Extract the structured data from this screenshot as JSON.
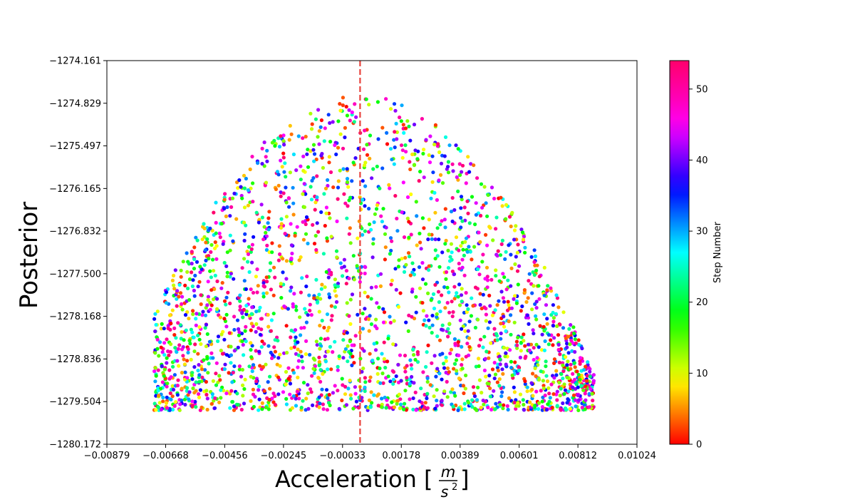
{
  "chart_data": {
    "type": "scatter",
    "title": "",
    "xlabel_text": "Acceleration [",
    "xlabel_unit_num": "m",
    "xlabel_unit_den": "s",
    "xlabel_unit_den_exp": "2",
    "xlabel_close": "]",
    "ylabel": "Posterior",
    "xlim": [
      -0.00879,
      0.01024
    ],
    "ylim": [
      -1280.172,
      -1274.161
    ],
    "x_ticks": [
      "-0.00879",
      "-0.00668",
      "-0.00456",
      "-0.00245",
      "-0.00033",
      "0.00178",
      "0.00389",
      "0.00601",
      "0.00812",
      "0.01024"
    ],
    "y_ticks": [
      "-1274.161",
      "-1274.829",
      "-1275.497",
      "-1276.165",
      "-1276.832",
      "-1277.500",
      "-1278.168",
      "-1278.836",
      "-1279.504",
      "-1280.172"
    ],
    "reference_line_x": 0.0003,
    "reference_line_color": "#e8423c",
    "colorbar": {
      "label": "Step Number",
      "min": 0,
      "max": 54,
      "ticks": [
        0,
        10,
        20,
        30,
        40,
        50
      ],
      "colormap": "gist_rainbow"
    },
    "point_count": 2600,
    "envelope": {
      "x_min": -0.0071,
      "x_max": 0.0087,
      "y_bottom": -1279.64,
      "peak_x": 0.0003,
      "peak_y": -1274.69
    }
  }
}
